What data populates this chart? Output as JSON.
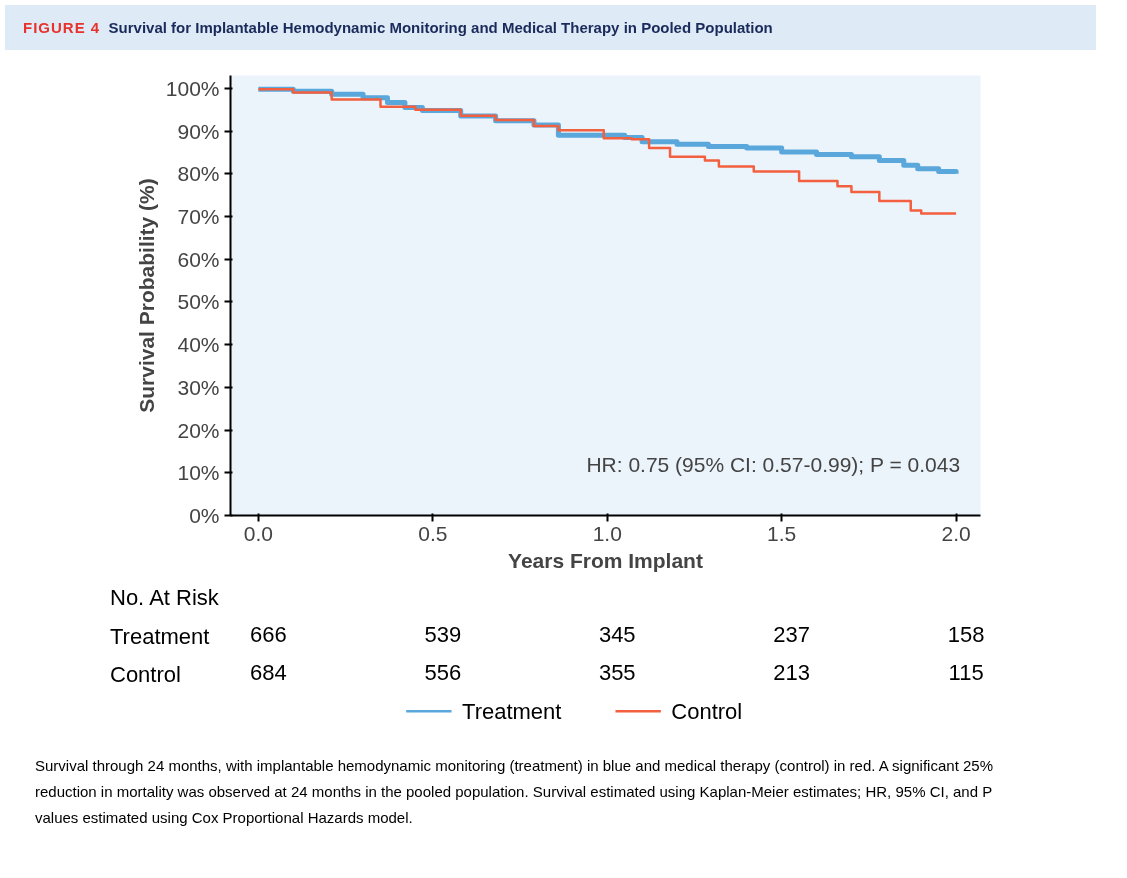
{
  "chart_data": {
    "type": "step",
    "title": "FIGURE 4",
    "subtitle": "Survival for Implantable Hemodynamic Monitoring and Medical Therapy in Pooled Population",
    "xlabel": "Years From Implant",
    "ylabel": "Survival Probability (%)",
    "xlim": [
      -0.08,
      2.07
    ],
    "ylim": [
      0,
      103
    ],
    "xticks": [
      {
        "value": 0,
        "label": "0.0"
      },
      {
        "value": 0.5,
        "label": "0.5"
      },
      {
        "value": 1,
        "label": "1.0"
      },
      {
        "value": 1.5,
        "label": "1.5"
      },
      {
        "value": 2,
        "label": "2.0"
      }
    ],
    "yticks": [
      {
        "value": 0,
        "label": "0%"
      },
      {
        "value": 10,
        "label": "10%"
      },
      {
        "value": 20,
        "label": "20%"
      },
      {
        "value": 30,
        "label": "30%"
      },
      {
        "value": 40,
        "label": "40%"
      },
      {
        "value": 50,
        "label": "50%"
      },
      {
        "value": 60,
        "label": "60%"
      },
      {
        "value": 70,
        "label": "70%"
      },
      {
        "value": 80,
        "label": "80%"
      },
      {
        "value": 90,
        "label": "90%"
      },
      {
        "value": 100,
        "label": "100%"
      }
    ],
    "grid": false,
    "legend": "bottom",
    "series": [
      {
        "name": "Treatment",
        "color": "#5aa7dc",
        "x": [
          0,
          0.1,
          0.21,
          0.3,
          0.37,
          0.42,
          0.47,
          0.58,
          0.68,
          0.79,
          0.86,
          0.95,
          1.05,
          1.1,
          1.2,
          1.29,
          1.4,
          1.5,
          1.6,
          1.7,
          1.78,
          1.85,
          1.89,
          1.95,
          2.0
        ],
        "values": [
          99.8,
          99.3,
          98.6,
          97.8,
          96.7,
          95.5,
          94.8,
          93.5,
          92.4,
          91.4,
          89.0,
          89.0,
          88.5,
          87.5,
          86.9,
          86.4,
          86.0,
          85.1,
          84.5,
          84.0,
          83.1,
          82.0,
          81.2,
          80.5,
          80.0
        ]
      },
      {
        "name": "Control",
        "color": "#f2603f",
        "x": [
          0,
          0.1,
          0.21,
          0.35,
          0.45,
          0.58,
          0.68,
          0.79,
          0.86,
          0.99,
          1.07,
          1.12,
          1.18,
          1.28,
          1.32,
          1.42,
          1.55,
          1.66,
          1.7,
          1.78,
          1.87,
          1.9,
          2.0
        ],
        "values": [
          99.8,
          99.0,
          97.4,
          95.7,
          95.0,
          93.6,
          92.6,
          91.2,
          90.2,
          88.3,
          88.1,
          86.0,
          84.0,
          83.1,
          81.7,
          80.5,
          78.3,
          77.1,
          75.7,
          73.6,
          71.4,
          70.7,
          70.7
        ]
      }
    ],
    "annotations": [
      "HR: 0.75 (95% CI: 0.57-0.99); P = 0.043",
      "No. At Risk",
      "Treatment",
      "666",
      "539",
      "345",
      "237",
      "158",
      "Control",
      "684",
      "556",
      "355",
      "213",
      "115",
      "Survival through 24 months, with implantable hemodynamic monitoring (treatment) in blue and medical therapy (control) in red. A significant 25% reduction in mortality was observed at 24 months in the pooled population. Survival estimated using Kaplan-Meier estimates; HR, 95% CI, and P values estimated using Cox Proportional Hazards model."
    ]
  }
}
